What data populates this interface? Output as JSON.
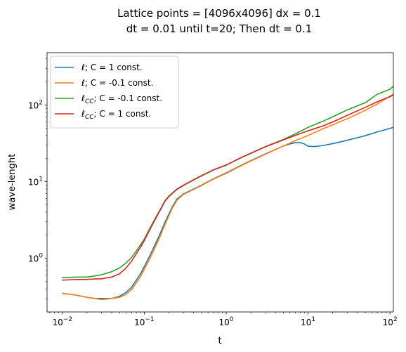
{
  "chart_data": {
    "type": "line",
    "title_lines": [
      "Lattice points = [4096x4096] dx = 0.1",
      "dt = 0.01 until t=20; Then dt = 0.1"
    ],
    "xlabel": "t",
    "ylabel": "wave-lenght",
    "xscale": "log",
    "yscale": "log",
    "xlim": [
      0.0065,
      110
    ],
    "ylim": [
      0.2,
      480
    ],
    "x_ticks": [
      {
        "value": 0.01,
        "base": "10",
        "exp": "−2"
      },
      {
        "value": 0.1,
        "base": "10",
        "exp": "−1"
      },
      {
        "value": 1,
        "base": "10",
        "exp": "0"
      },
      {
        "value": 10,
        "base": "10",
        "exp": "1"
      },
      {
        "value": 100,
        "base": "10",
        "exp": "2"
      }
    ],
    "y_ticks": [
      {
        "value": 1,
        "base": "10",
        "exp": "0"
      },
      {
        "value": 10,
        "base": "10",
        "exp": "1"
      },
      {
        "value": 100,
        "base": "10",
        "exp": "2"
      }
    ],
    "legend": {
      "position": "upper-left"
    },
    "series": [
      {
        "name": "ℓ; C = 1 const.",
        "sym": "ℓ",
        "sub": "",
        "rest": "; C = 1 const.",
        "color": "#1f77b4",
        "x": [
          0.01,
          0.015,
          0.02,
          0.025,
          0.03,
          0.04,
          0.05,
          0.06,
          0.07,
          0.08,
          0.09,
          0.1,
          0.12,
          0.15,
          0.18,
          0.2,
          0.22,
          0.25,
          0.3,
          0.4,
          0.5,
          0.7,
          1,
          1.5,
          2,
          3,
          4,
          5,
          6,
          7,
          8,
          9,
          10,
          12,
          15,
          20,
          30,
          50,
          70,
          100,
          110
        ],
        "y": [
          0.35,
          0.33,
          0.31,
          0.3,
          0.3,
          0.3,
          0.32,
          0.36,
          0.42,
          0.52,
          0.63,
          0.78,
          1.15,
          1.9,
          3.0,
          3.8,
          4.7,
          5.9,
          6.9,
          8.0,
          9.0,
          10.9,
          13.0,
          16.2,
          18.8,
          22.9,
          26.3,
          29.1,
          31.0,
          32.2,
          32.3,
          31.0,
          29.0,
          28.7,
          29.5,
          31.3,
          34.6,
          39.8,
          44.5,
          49.5,
          51.0
        ]
      },
      {
        "name": "ℓ; C = -0.1 const.",
        "sym": "ℓ",
        "sub": "",
        "rest": "; C = -0.1 const.",
        "color": "#ff7f0e",
        "x": [
          0.01,
          0.015,
          0.02,
          0.025,
          0.03,
          0.04,
          0.05,
          0.06,
          0.07,
          0.08,
          0.09,
          0.1,
          0.12,
          0.15,
          0.18,
          0.2,
          0.22,
          0.25,
          0.3,
          0.4,
          0.5,
          0.7,
          1,
          1.5,
          2,
          3,
          4,
          5,
          7,
          10,
          15,
          20,
          30,
          50,
          70,
          100,
          110
        ],
        "y": [
          0.35,
          0.33,
          0.31,
          0.3,
          0.29,
          0.3,
          0.31,
          0.34,
          0.39,
          0.48,
          0.58,
          0.72,
          1.05,
          1.75,
          2.8,
          3.6,
          4.5,
          5.7,
          6.8,
          7.9,
          8.9,
          10.8,
          12.8,
          16.0,
          18.6,
          22.7,
          26.2,
          29.1,
          34.3,
          40.0,
          48.5,
          55.0,
          66.0,
          85.0,
          103,
          130,
          138
        ]
      },
      {
        "name": "ℓCC; C = -0.1 const.",
        "sym": "ℓ",
        "sub": "CC",
        "rest": "; C = -0.1 const.",
        "color": "#2ca02c",
        "x": [
          0.01,
          0.015,
          0.02,
          0.025,
          0.03,
          0.04,
          0.05,
          0.06,
          0.07,
          0.08,
          0.09,
          0.1,
          0.12,
          0.15,
          0.18,
          0.2,
          0.25,
          0.3,
          0.4,
          0.5,
          0.7,
          1,
          1.5,
          2,
          3,
          5,
          7,
          10,
          15,
          20,
          30,
          50,
          70,
          100,
          110
        ],
        "y": [
          0.56,
          0.57,
          0.57,
          0.59,
          0.61,
          0.67,
          0.75,
          0.87,
          1.03,
          1.25,
          1.5,
          1.78,
          2.6,
          4.0,
          5.7,
          6.5,
          8.0,
          9.0,
          10.6,
          12.0,
          14.3,
          16.5,
          20.5,
          23.5,
          28.6,
          35.5,
          42.0,
          51.0,
          61.0,
          70.0,
          86.0,
          107,
          138,
          160,
          175
        ]
      },
      {
        "name": "ℓCC; C = 1 const.",
        "sym": "ℓ",
        "sub": "CC",
        "rest": "; C = 1 const.",
        "color": "#d62728",
        "x": [
          0.01,
          0.015,
          0.02,
          0.025,
          0.03,
          0.04,
          0.05,
          0.06,
          0.07,
          0.08,
          0.09,
          0.1,
          0.12,
          0.15,
          0.18,
          0.2,
          0.25,
          0.3,
          0.4,
          0.5,
          0.7,
          1,
          1.5,
          2,
          3,
          5,
          7,
          10,
          15,
          20,
          30,
          50,
          70,
          100,
          110
        ],
        "y": [
          0.52,
          0.53,
          0.53,
          0.54,
          0.54,
          0.57,
          0.63,
          0.75,
          0.92,
          1.15,
          1.4,
          1.7,
          2.5,
          3.9,
          5.6,
          6.4,
          7.9,
          8.9,
          10.5,
          11.9,
          14.2,
          16.4,
          20.4,
          23.4,
          28.4,
          35.0,
          40.0,
          46.0,
          53.0,
          60.0,
          73.0,
          93.0,
          110,
          128,
          135
        ]
      }
    ]
  }
}
